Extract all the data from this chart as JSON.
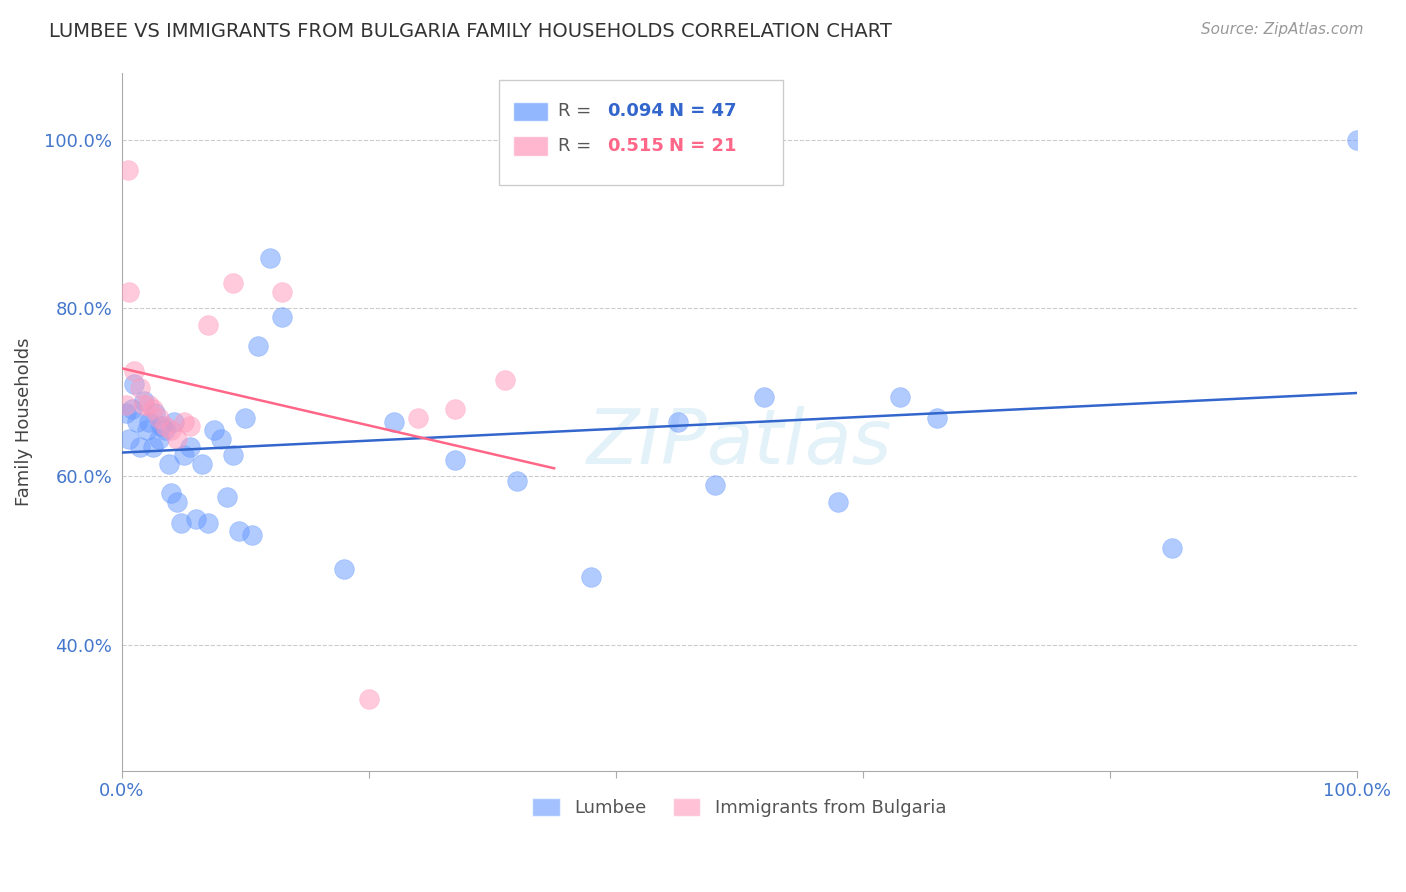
{
  "title": "LUMBEE VS IMMIGRANTS FROM BULGARIA FAMILY HOUSEHOLDS CORRELATION CHART",
  "source": "Source: ZipAtlas.com",
  "ylabel": "Family Households",
  "R_lumbee": 0.094,
  "N_lumbee": 47,
  "R_bulgaria": 0.515,
  "N_bulgaria": 21,
  "lumbee_color": "#6699ff",
  "bulgaria_color": "#ff99bb",
  "trend_lumbee_color": "#3366cc",
  "trend_bulgaria_color": "#ff6688",
  "watermark": "ZIPatlas",
  "legend_lumbee": "Lumbee",
  "legend_bulgaria": "Immigrants from Bulgaria",
  "lumbee_x": [
    0.003,
    0.006,
    0.008,
    0.01,
    0.012,
    0.015,
    0.018,
    0.02,
    0.022,
    0.025,
    0.027,
    0.03,
    0.032,
    0.035,
    0.038,
    0.04,
    0.042,
    0.045,
    0.048,
    0.05,
    0.055,
    0.06,
    0.065,
    0.07,
    0.075,
    0.08,
    0.085,
    0.09,
    0.095,
    0.1,
    0.105,
    0.11,
    0.12,
    0.13,
    0.18,
    0.22,
    0.27,
    0.32,
    0.38,
    0.45,
    0.48,
    0.52,
    0.58,
    0.63,
    0.66,
    0.85,
    1.0
  ],
  "lumbee_y": [
    0.675,
    0.645,
    0.68,
    0.71,
    0.665,
    0.635,
    0.69,
    0.655,
    0.665,
    0.635,
    0.675,
    0.645,
    0.66,
    0.655,
    0.615,
    0.58,
    0.665,
    0.57,
    0.545,
    0.625,
    0.635,
    0.55,
    0.615,
    0.545,
    0.655,
    0.645,
    0.575,
    0.625,
    0.535,
    0.67,
    0.53,
    0.755,
    0.86,
    0.79,
    0.49,
    0.665,
    0.62,
    0.595,
    0.48,
    0.665,
    0.59,
    0.695,
    0.57,
    0.695,
    0.67,
    0.515,
    1.0
  ],
  "bulgaria_x": [
    0.003,
    0.006,
    0.01,
    0.015,
    0.018,
    0.022,
    0.025,
    0.03,
    0.035,
    0.04,
    0.045,
    0.05,
    0.055,
    0.07,
    0.09,
    0.13,
    0.2,
    0.24,
    0.27,
    0.31,
    0.005
  ],
  "bulgaria_y": [
    0.685,
    0.82,
    0.725,
    0.705,
    0.685,
    0.685,
    0.68,
    0.67,
    0.66,
    0.655,
    0.645,
    0.665,
    0.66,
    0.78,
    0.83,
    0.82,
    0.335,
    0.67,
    0.68,
    0.715,
    0.965
  ],
  "xlim": [
    0.0,
    1.0
  ],
  "ylim": [
    0.25,
    1.08
  ],
  "xtick_positions": [
    0.0,
    0.2,
    0.4,
    0.6,
    0.8,
    1.0
  ],
  "xticklabels": [
    "0.0%",
    "",
    "",
    "",
    "",
    "100.0%"
  ],
  "ytick_positions": [
    0.4,
    0.6,
    0.8,
    1.0
  ],
  "yticklabels": [
    "40.0%",
    "60.0%",
    "80.0%",
    "100.0%"
  ]
}
